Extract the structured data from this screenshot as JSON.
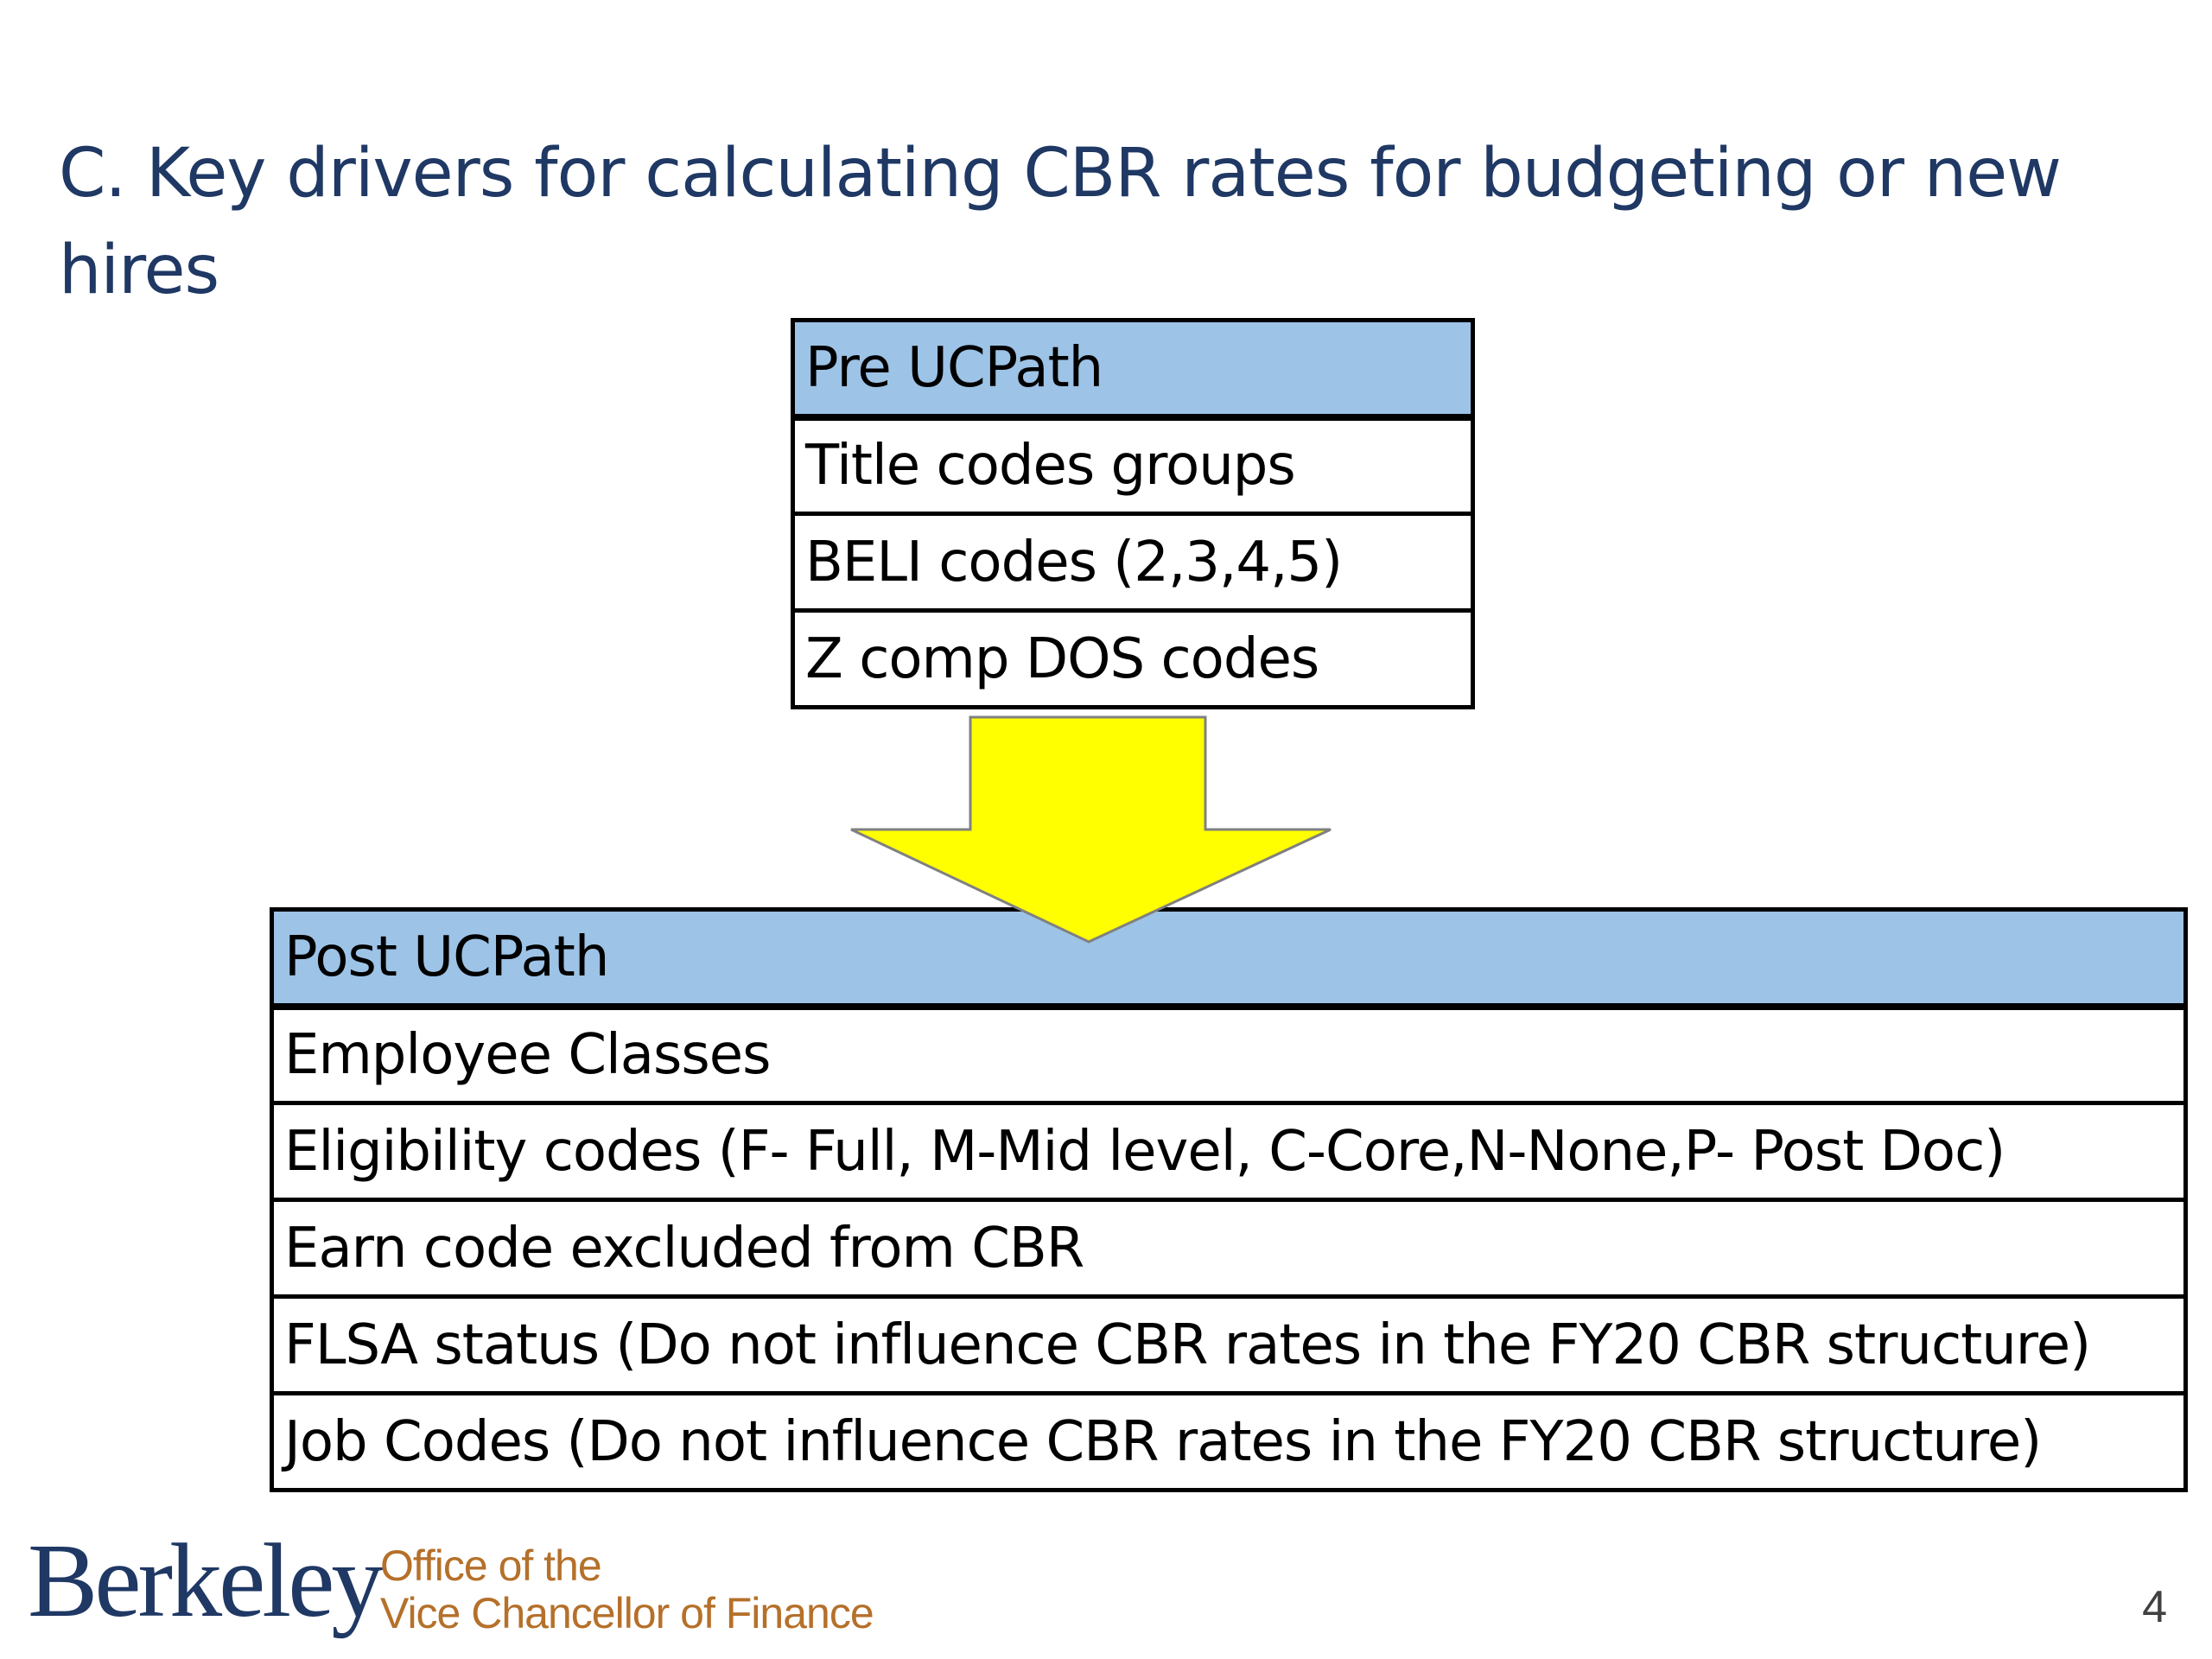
{
  "slide": {
    "title": "C. Key drivers for calculating CBR rates for budgeting or new hires",
    "page_number": "4"
  },
  "pre_ucpath": {
    "header": "Pre UCPath",
    "rows": [
      "Title codes groups",
      "BELI codes (2,3,4,5)",
      "Z comp DOS codes"
    ]
  },
  "post_ucpath": {
    "header": "Post UCPath",
    "rows": [
      "Employee Classes",
      "Eligibility codes (F- Full, M-Mid level, C-Core,N-None,P- Post Doc)",
      "Earn code excluded from CBR",
      "FLSA status (Do not influence CBR rates in the FY20 CBR structure)",
      "Job Codes (Do not influence CBR rates in the FY20 CBR structure)"
    ]
  },
  "arrow": {
    "icon": "down-arrow-icon",
    "fill_color": "#ffff00"
  },
  "footer": {
    "logo_text": "Berkeley",
    "office_line1": "Office of the",
    "office_line2": "Vice Chancellor of Finance"
  },
  "colors": {
    "title": "#1f3864",
    "header_fill": "#9dc3e6",
    "logo": "#1f3864",
    "office_text": "#b5702a"
  }
}
